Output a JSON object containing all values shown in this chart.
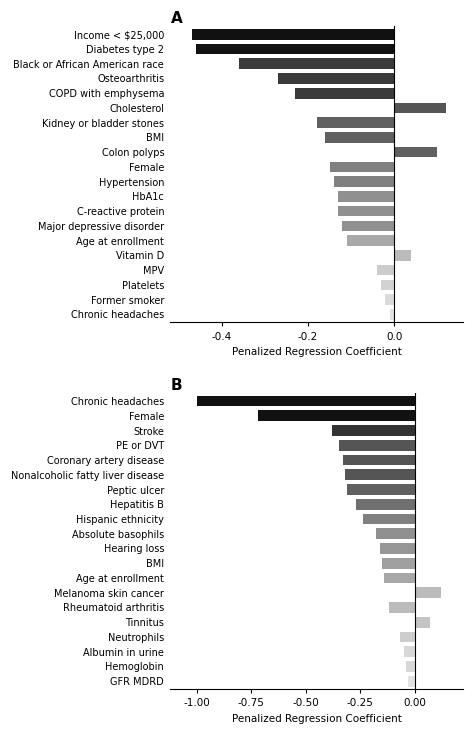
{
  "panel_A": {
    "labels": [
      "Income < $25,000",
      "Diabetes type 2",
      "Black or African American race",
      "Osteoarthritis",
      "COPD with emphysema",
      "Cholesterol",
      "Kidney or bladder stones",
      "BMI",
      "Colon polyps",
      "Female",
      "Hypertension",
      "HbA1c",
      "C-reactive protein",
      "Major depressive disorder",
      "Age at enrollment",
      "Vitamin D",
      "MPV",
      "Platelets",
      "Former smoker",
      "Chronic headaches"
    ],
    "values": [
      -0.47,
      -0.46,
      -0.36,
      -0.27,
      -0.23,
      0.12,
      -0.18,
      -0.16,
      0.1,
      -0.15,
      -0.14,
      -0.13,
      -0.13,
      -0.12,
      -0.11,
      0.04,
      -0.04,
      -0.03,
      -0.02,
      -0.01
    ],
    "colors": [
      "#111111",
      "#111111",
      "#3a3a3a",
      "#3a3a3a",
      "#3a3a3a",
      "#555555",
      "#606060",
      "#606060",
      "#606060",
      "#808080",
      "#808080",
      "#909090",
      "#909090",
      "#909090",
      "#a8a8a8",
      "#bbbbbb",
      "#cccccc",
      "#d2d2d2",
      "#dadada",
      "#e2e2e2"
    ],
    "xlim": [
      -0.52,
      0.16
    ],
    "xticks": [
      -0.4,
      -0.2,
      0.0
    ],
    "xtick_labels": [
      "-0.4",
      "-0.2",
      "0.0"
    ],
    "xlabel": "Penalized Regression Coefficient",
    "panel_label": "A"
  },
  "panel_B": {
    "labels": [
      "Chronic headaches",
      "Female",
      "Stroke",
      "PE or DVT",
      "Coronary artery disease",
      "Nonalcoholic fatty liver disease",
      "Peptic ulcer",
      "Hepatitis B",
      "Hispanic ethnicity",
      "Absolute basophils",
      "Hearing loss",
      "BMI",
      "Age at enrollment",
      "Melanoma skin cancer",
      "Rheumatoid arthritis",
      "Tinnitus",
      "Neutrophils",
      "Albumin in urine",
      "Hemoglobin",
      "GFR MDRD"
    ],
    "values": [
      -1.0,
      -0.72,
      -0.38,
      -0.35,
      -0.33,
      -0.32,
      -0.31,
      -0.27,
      -0.24,
      -0.18,
      -0.16,
      -0.15,
      -0.14,
      0.12,
      -0.12,
      0.07,
      -0.07,
      -0.05,
      -0.04,
      -0.03
    ],
    "colors": [
      "#111111",
      "#111111",
      "#333333",
      "#555555",
      "#555555",
      "#555555",
      "#606060",
      "#707070",
      "#808080",
      "#909090",
      "#969696",
      "#a0a0a0",
      "#a8a8a8",
      "#bbbbbb",
      "#bbbbbb",
      "#c4c4c4",
      "#cccccc",
      "#d8d8d8",
      "#d8d8d8",
      "#e2e2e2"
    ],
    "xlim": [
      -1.12,
      0.22
    ],
    "xticks": [
      -1.0,
      -0.75,
      -0.5,
      -0.25,
      0.0
    ],
    "xtick_labels": [
      "-1.00",
      "-0.75",
      "-0.50",
      "-0.25",
      "0.00"
    ],
    "xlabel": "Penalized Regression Coefficient",
    "panel_label": "B"
  },
  "background_color": "#ffffff",
  "bar_height": 0.72,
  "fontsize_labels": 7.0,
  "fontsize_axis": 7.5,
  "fontsize_panel": 11
}
